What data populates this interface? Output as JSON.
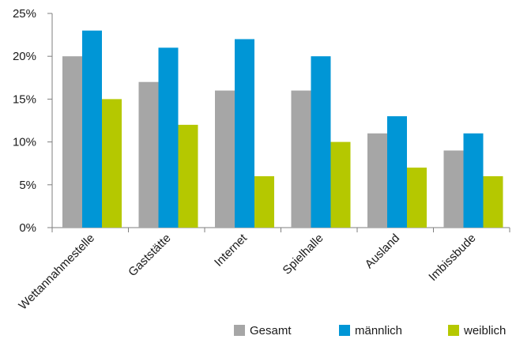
{
  "chart_data": {
    "type": "bar",
    "categories": [
      "Wettannahmestelle",
      "Gaststätte",
      "Internet",
      "Spielhalle",
      "Ausland",
      "Imbissbude"
    ],
    "series": [
      {
        "name": "Gesamt",
        "color": "#a6a6a6",
        "values": [
          20,
          17,
          16,
          16,
          11,
          9
        ]
      },
      {
        "name": "männlich",
        "color": "#0096d6",
        "values": [
          23,
          21,
          22,
          20,
          13,
          11
        ]
      },
      {
        "name": "weiblich",
        "color": "#b5c800",
        "values": [
          15,
          12,
          6,
          10,
          7,
          6
        ]
      }
    ],
    "ylim": [
      0,
      25
    ],
    "yticks": [
      0,
      5,
      10,
      15,
      20,
      25
    ],
    "ytick_labels": [
      "0%",
      "5%",
      "10%",
      "15%",
      "20%",
      "25%"
    ],
    "grid": false,
    "legend_position": "bottom-right",
    "title": "",
    "xlabel": "",
    "ylabel": ""
  }
}
